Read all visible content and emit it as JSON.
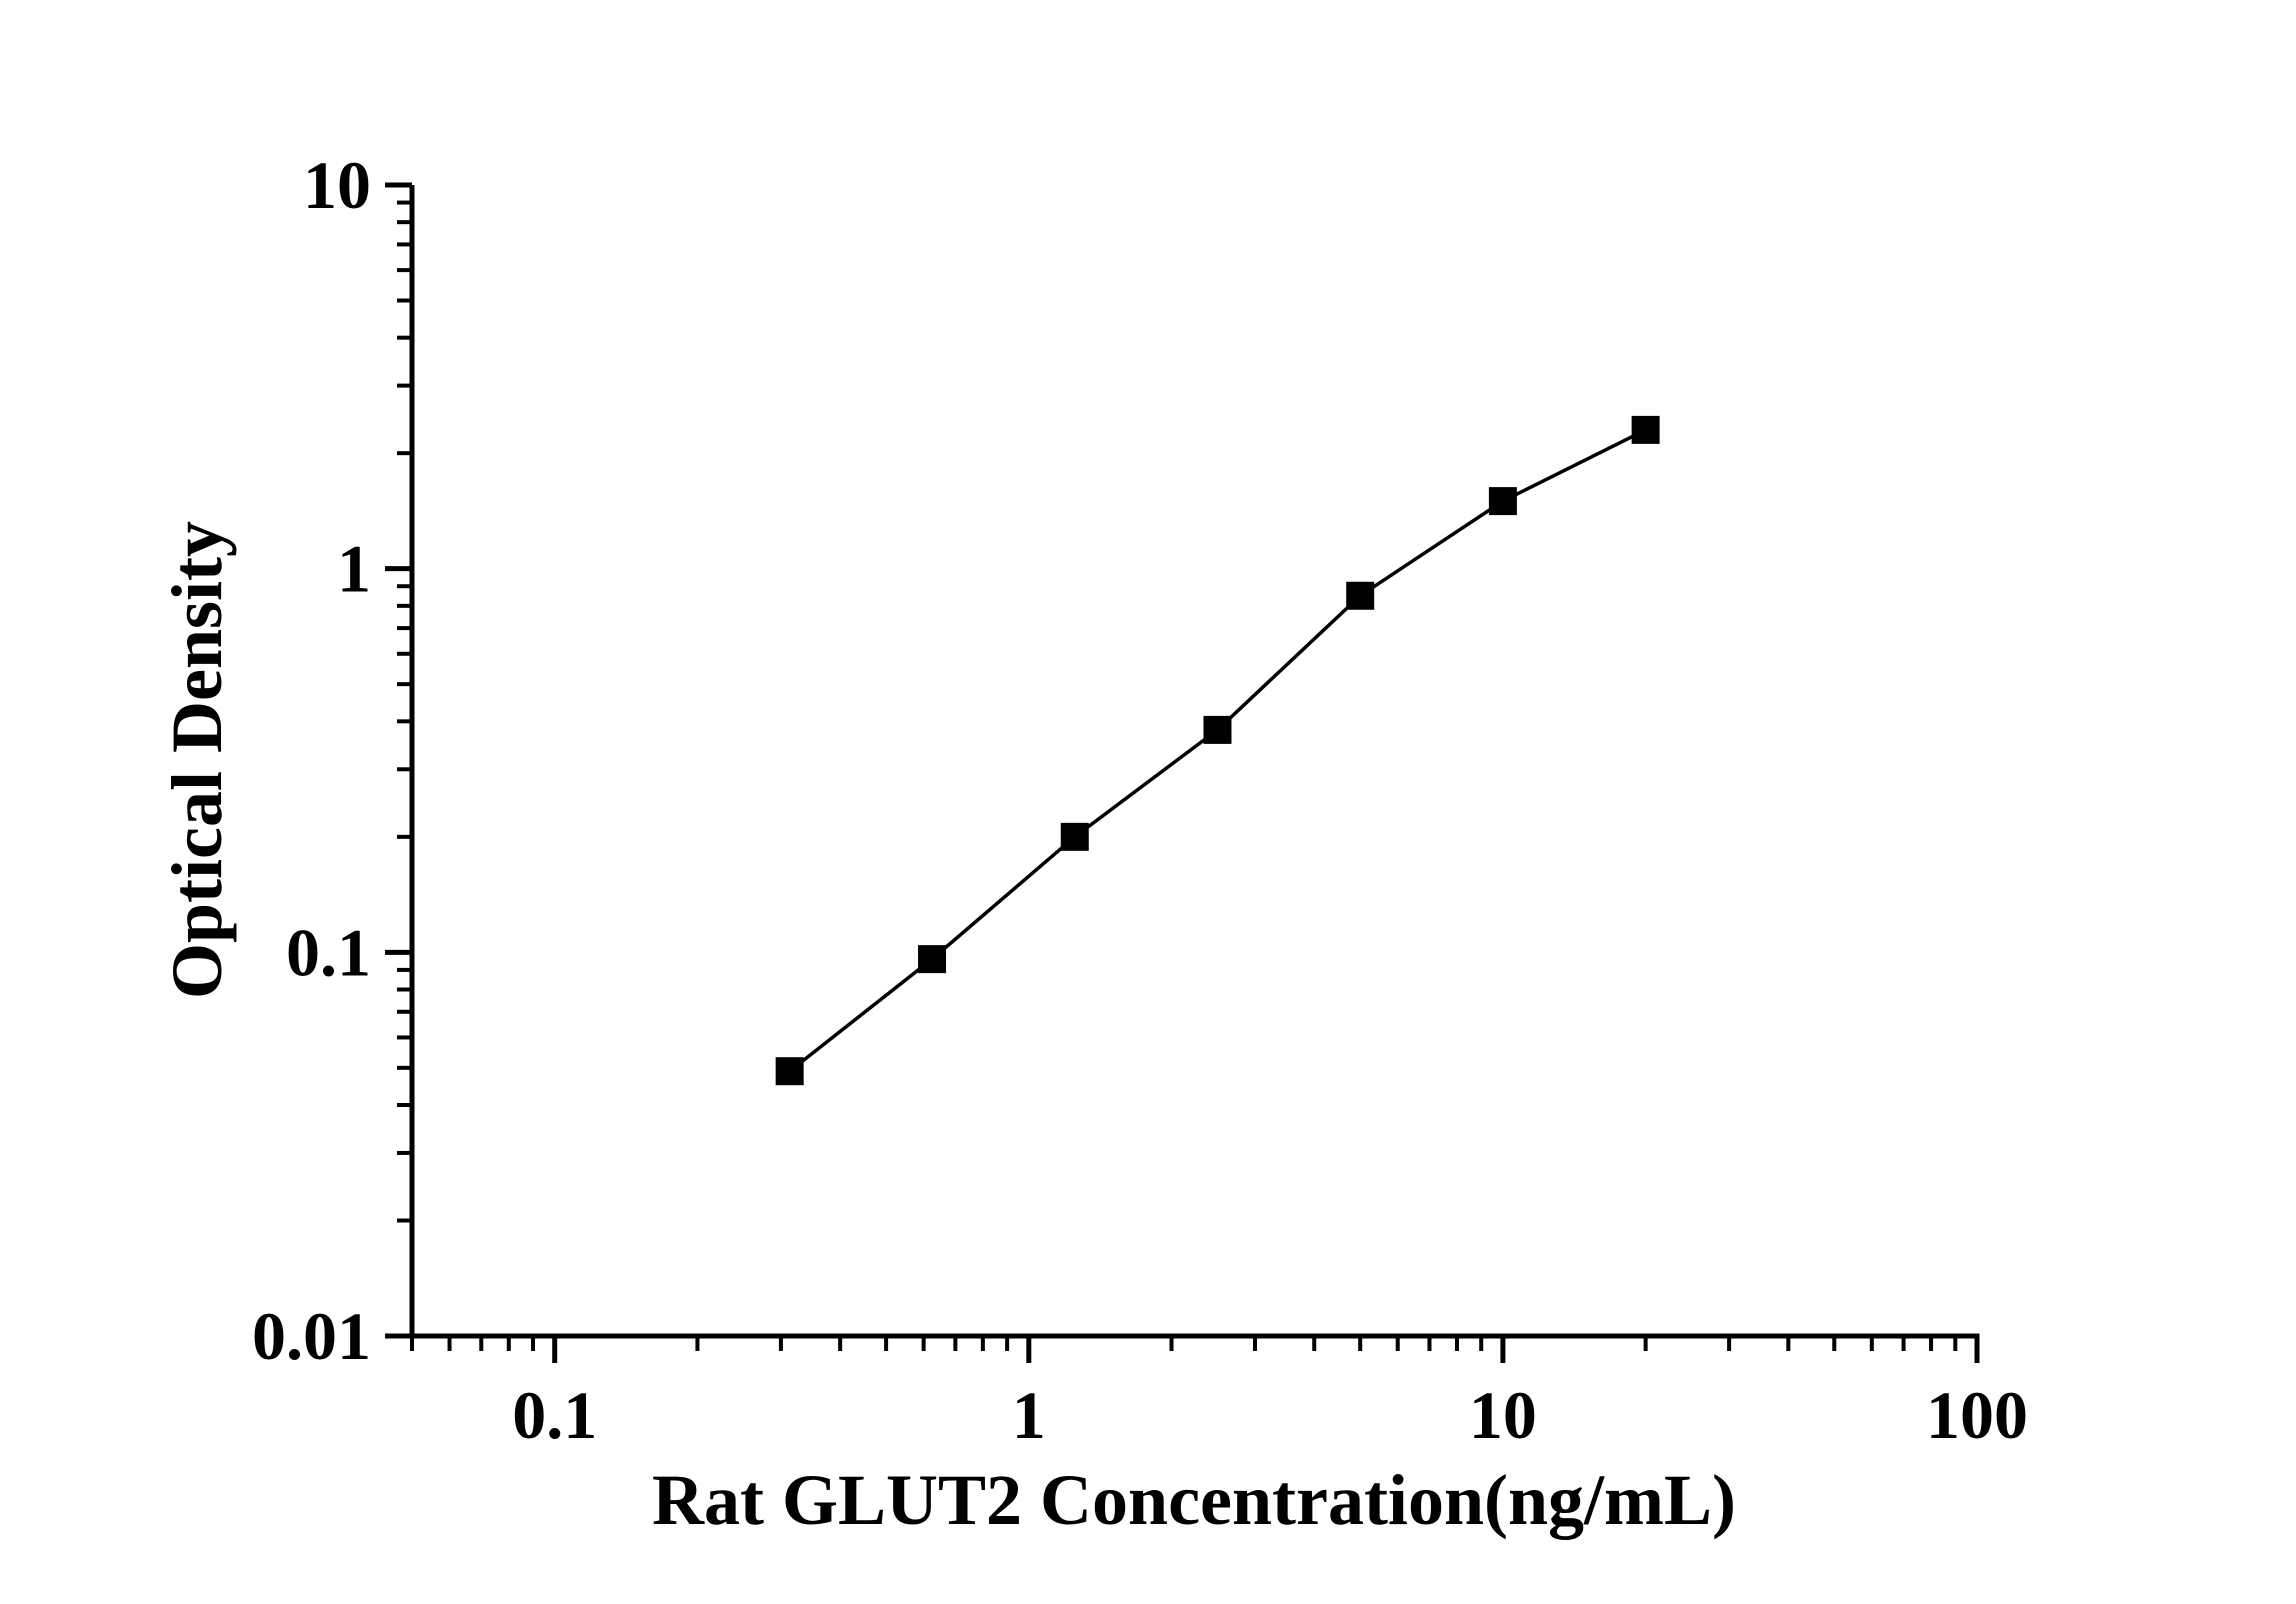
{
  "chart_data": {
    "type": "line",
    "title": "",
    "xlabel": "Rat GLUT2 Concentration(ng/mL)",
    "ylabel": "Optical Density",
    "x_scale": "log",
    "y_scale": "log",
    "xlim": [
      0.05,
      100
    ],
    "ylim": [
      0.01,
      10
    ],
    "x_major_ticks": [
      0.1,
      1,
      10,
      100
    ],
    "x_tick_labels": [
      "0.1",
      "1",
      "10",
      "100"
    ],
    "y_major_ticks": [
      0.01,
      0.1,
      1,
      10
    ],
    "y_tick_labels": [
      "0.01",
      "0.1",
      "1",
      "10"
    ],
    "minor_ticks": "log-decades-2-to-9",
    "grid": false,
    "legend": null,
    "axis_color": "#000000",
    "background_color": "#ffffff",
    "series": [
      {
        "name": "standard-curve",
        "marker": "filled-square",
        "marker_color": "#000000",
        "line_color": "#000000",
        "x": [
          0.313,
          0.625,
          1.25,
          2.5,
          5,
          10,
          20
        ],
        "y": [
          0.049,
          0.096,
          0.2,
          0.38,
          0.85,
          1.5,
          2.3
        ]
      }
    ]
  }
}
